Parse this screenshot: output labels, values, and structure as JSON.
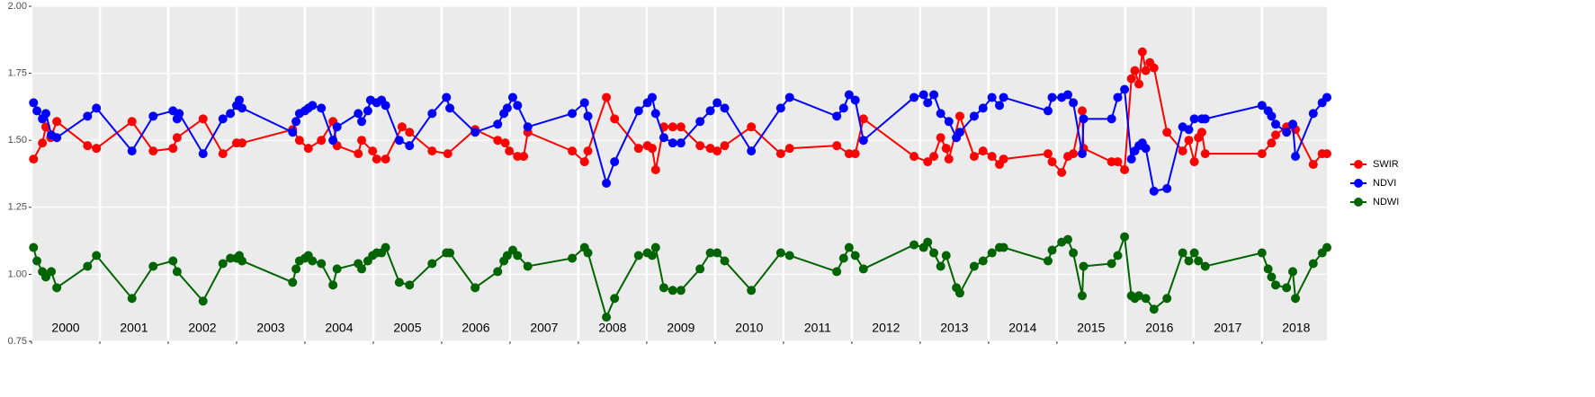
{
  "chart_data": {
    "type": "line",
    "xlim": [
      2000,
      2018.95
    ],
    "xticks": [
      2000,
      2001,
      2002,
      2003,
      2004,
      2005,
      2006,
      2007,
      2008,
      2009,
      2010,
      2011,
      2012,
      2013,
      2014,
      2015,
      2016,
      2017,
      2018
    ],
    "ylim": [
      0.75,
      2.0
    ],
    "yticks": [
      {
        "value": 0.75,
        "label": "0.75"
      },
      {
        "value": 1.0,
        "label": "1.00"
      },
      {
        "value": 1.25,
        "label": "1.25"
      },
      {
        "value": 1.5,
        "label": "1.50"
      },
      {
        "value": 1.75,
        "label": "1.75"
      },
      {
        "value": 2.0,
        "label": "2.00"
      }
    ],
    "grid": true,
    "legend": "right",
    "series": [
      {
        "name": "SWIR",
        "color": "#ff0000",
        "x": [
          2000.03,
          2000.16,
          2000.21,
          2000.28,
          2000.37,
          2000.82,
          2000.95,
          2001.47,
          2001.78,
          2002.07,
          2002.13,
          2002.51,
          2002.8,
          2003.0,
          2003.08,
          2003.82,
          2003.92,
          2004.05,
          2004.24,
          2004.41,
          2004.47,
          2004.78,
          2004.83,
          2004.99,
          2005.05,
          2005.18,
          2005.42,
          2005.53,
          2005.86,
          2006.09,
          2006.49,
          2006.82,
          2006.93,
          2006.99,
          2007.11,
          2007.2,
          2007.26,
          2007.91,
          2008.09,
          2008.14,
          2008.41,
          2008.53,
          2008.88,
          2009.01,
          2009.08,
          2009.13,
          2009.25,
          2009.38,
          2009.5,
          2009.78,
          2009.93,
          2010.03,
          2010.14,
          2010.53,
          2010.96,
          2011.09,
          2011.78,
          2011.96,
          2012.05,
          2012.17,
          2012.91,
          2013.11,
          2013.2,
          2013.3,
          2013.38,
          2013.42,
          2013.58,
          2013.79,
          2013.92,
          2014.05,
          2014.16,
          2014.22,
          2014.87,
          2014.93,
          2015.07,
          2015.16,
          2015.24,
          2015.37,
          2015.39,
          2015.8,
          2015.89,
          2015.99,
          2016.09,
          2016.14,
          2016.2,
          2016.25,
          2016.3,
          2016.36,
          2016.42,
          2016.61,
          2016.84,
          2016.93,
          2017.01,
          2017.07,
          2017.12,
          2017.17,
          2018.0,
          2018.14,
          2018.2,
          2018.36,
          2018.49,
          2018.75,
          2018.88,
          2018.95
        ],
        "values": [
          1.43,
          1.49,
          1.55,
          1.51,
          1.57,
          1.48,
          1.47,
          1.57,
          1.46,
          1.47,
          1.51,
          1.58,
          1.45,
          1.49,
          1.49,
          1.54,
          1.5,
          1.47,
          1.5,
          1.57,
          1.48,
          1.45,
          1.5,
          1.46,
          1.43,
          1.43,
          1.55,
          1.53,
          1.46,
          1.45,
          1.54,
          1.5,
          1.49,
          1.46,
          1.44,
          1.44,
          1.53,
          1.46,
          1.42,
          1.46,
          1.66,
          1.58,
          1.47,
          1.48,
          1.47,
          1.39,
          1.55,
          1.55,
          1.55,
          1.48,
          1.47,
          1.46,
          1.48,
          1.55,
          1.45,
          1.47,
          1.48,
          1.45,
          1.45,
          1.58,
          1.44,
          1.42,
          1.44,
          1.51,
          1.47,
          1.43,
          1.59,
          1.44,
          1.46,
          1.44,
          1.41,
          1.43,
          1.45,
          1.42,
          1.38,
          1.44,
          1.45,
          1.61,
          1.47,
          1.42,
          1.42,
          1.39,
          1.73,
          1.76,
          1.71,
          1.83,
          1.76,
          1.79,
          1.77,
          1.53,
          1.46,
          1.5,
          1.42,
          1.51,
          1.53,
          1.45,
          1.45,
          1.49,
          1.52,
          1.55,
          1.54,
          1.41,
          1.45,
          1.45
        ]
      },
      {
        "name": "NDVI",
        "color": "#0000ff",
        "x": [
          2000.03,
          2000.08,
          2000.16,
          2000.21,
          2000.29,
          2000.37,
          2000.82,
          2000.95,
          2001.47,
          2001.78,
          2002.07,
          2002.13,
          2002.16,
          2002.51,
          2002.8,
          2002.91,
          2003.0,
          2003.04,
          2003.08,
          2003.82,
          2003.87,
          2003.92,
          2004.0,
          2004.05,
          2004.11,
          2004.24,
          2004.41,
          2004.47,
          2004.78,
          2004.83,
          2004.92,
          2004.96,
          2005.05,
          2005.12,
          2005.18,
          2005.38,
          2005.53,
          2005.86,
          2006.07,
          2006.12,
          2006.49,
          2006.82,
          2006.91,
          2006.96,
          2007.04,
          2007.11,
          2007.26,
          2007.91,
          2008.09,
          2008.14,
          2008.41,
          2008.53,
          2008.88,
          2009.01,
          2009.08,
          2009.13,
          2009.25,
          2009.38,
          2009.5,
          2009.78,
          2009.93,
          2010.03,
          2010.14,
          2010.53,
          2010.96,
          2011.09,
          2011.78,
          2011.88,
          2011.96,
          2012.05,
          2012.17,
          2012.91,
          2013.05,
          2013.11,
          2013.2,
          2013.3,
          2013.42,
          2013.53,
          2013.58,
          2013.79,
          2013.92,
          2014.05,
          2014.16,
          2014.22,
          2014.87,
          2014.93,
          2015.07,
          2015.16,
          2015.24,
          2015.37,
          2015.39,
          2015.8,
          2015.89,
          2015.99,
          2016.09,
          2016.14,
          2016.2,
          2016.25,
          2016.3,
          2016.42,
          2016.61,
          2016.84,
          2016.93,
          2017.01,
          2017.12,
          2017.17,
          2018.0,
          2018.09,
          2018.14,
          2018.2,
          2018.36,
          2018.45,
          2018.49,
          2018.75,
          2018.88,
          2018.95
        ],
        "values": [
          1.64,
          1.61,
          1.58,
          1.6,
          1.52,
          1.51,
          1.59,
          1.62,
          1.46,
          1.59,
          1.61,
          1.58,
          1.6,
          1.45,
          1.58,
          1.6,
          1.63,
          1.65,
          1.62,
          1.53,
          1.57,
          1.6,
          1.61,
          1.62,
          1.63,
          1.62,
          1.5,
          1.55,
          1.6,
          1.57,
          1.61,
          1.65,
          1.64,
          1.65,
          1.63,
          1.5,
          1.48,
          1.6,
          1.66,
          1.62,
          1.53,
          1.56,
          1.6,
          1.62,
          1.66,
          1.63,
          1.55,
          1.6,
          1.64,
          1.59,
          1.34,
          1.42,
          1.61,
          1.64,
          1.66,
          1.6,
          1.51,
          1.49,
          1.49,
          1.57,
          1.61,
          1.64,
          1.62,
          1.46,
          1.62,
          1.66,
          1.59,
          1.62,
          1.67,
          1.65,
          1.5,
          1.66,
          1.67,
          1.64,
          1.67,
          1.6,
          1.57,
          1.51,
          1.53,
          1.59,
          1.62,
          1.66,
          1.63,
          1.66,
          1.61,
          1.66,
          1.66,
          1.67,
          1.64,
          1.45,
          1.58,
          1.58,
          1.66,
          1.69,
          1.43,
          1.46,
          1.48,
          1.49,
          1.47,
          1.31,
          1.32,
          1.55,
          1.54,
          1.58,
          1.58,
          1.58,
          1.63,
          1.61,
          1.59,
          1.56,
          1.53,
          1.56,
          1.44,
          1.6,
          1.64,
          1.66
        ]
      },
      {
        "name": "NDWI",
        "color": "#006400",
        "x": [
          2000.03,
          2000.08,
          2000.16,
          2000.21,
          2000.29,
          2000.37,
          2000.82,
          2000.95,
          2001.47,
          2001.78,
          2002.07,
          2002.13,
          2002.51,
          2002.8,
          2002.91,
          2003.0,
          2003.04,
          2003.08,
          2003.82,
          2003.87,
          2003.92,
          2004.0,
          2004.05,
          2004.11,
          2004.24,
          2004.41,
          2004.47,
          2004.78,
          2004.83,
          2004.92,
          2004.99,
          2005.05,
          2005.12,
          2005.18,
          2005.38,
          2005.53,
          2005.86,
          2006.07,
          2006.12,
          2006.49,
          2006.82,
          2006.91,
          2006.96,
          2007.04,
          2007.11,
          2007.26,
          2007.91,
          2008.09,
          2008.14,
          2008.41,
          2008.53,
          2008.88,
          2009.01,
          2009.08,
          2009.13,
          2009.25,
          2009.38,
          2009.5,
          2009.78,
          2009.93,
          2010.03,
          2010.14,
          2010.53,
          2010.96,
          2011.09,
          2011.78,
          2011.88,
          2011.96,
          2012.05,
          2012.17,
          2012.91,
          2013.05,
          2013.11,
          2013.2,
          2013.3,
          2013.38,
          2013.53,
          2013.58,
          2013.79,
          2013.92,
          2014.05,
          2014.16,
          2014.22,
          2014.87,
          2014.93,
          2015.07,
          2015.16,
          2015.24,
          2015.37,
          2015.39,
          2015.8,
          2015.89,
          2015.99,
          2016.09,
          2016.14,
          2016.2,
          2016.3,
          2016.42,
          2016.61,
          2016.84,
          2016.93,
          2017.01,
          2017.07,
          2017.17,
          2018.0,
          2018.09,
          2018.14,
          2018.2,
          2018.36,
          2018.45,
          2018.49,
          2018.75,
          2018.88,
          2018.95
        ],
        "values": [
          1.1,
          1.05,
          1.01,
          0.99,
          1.01,
          0.95,
          1.03,
          1.07,
          0.91,
          1.03,
          1.05,
          1.01,
          0.9,
          1.04,
          1.06,
          1.06,
          1.07,
          1.05,
          0.97,
          1.02,
          1.05,
          1.06,
          1.07,
          1.05,
          1.04,
          0.96,
          1.02,
          1.04,
          1.02,
          1.05,
          1.07,
          1.08,
          1.08,
          1.1,
          0.97,
          0.96,
          1.04,
          1.08,
          1.08,
          0.95,
          1.01,
          1.05,
          1.07,
          1.09,
          1.07,
          1.03,
          1.06,
          1.1,
          1.08,
          0.84,
          0.91,
          1.07,
          1.08,
          1.07,
          1.1,
          0.95,
          0.94,
          0.94,
          1.02,
          1.08,
          1.08,
          1.05,
          0.94,
          1.08,
          1.07,
          1.01,
          1.06,
          1.1,
          1.07,
          1.02,
          1.11,
          1.1,
          1.12,
          1.08,
          1.03,
          1.07,
          0.95,
          0.93,
          1.03,
          1.05,
          1.08,
          1.1,
          1.1,
          1.05,
          1.09,
          1.12,
          1.13,
          1.08,
          0.92,
          1.03,
          1.04,
          1.07,
          1.14,
          0.92,
          0.91,
          0.92,
          0.91,
          0.87,
          0.91,
          1.08,
          1.05,
          1.08,
          1.05,
          1.03,
          1.08,
          1.02,
          0.99,
          0.96,
          0.95,
          1.01,
          0.91,
          1.04,
          1.08,
          1.1
        ]
      }
    ]
  }
}
